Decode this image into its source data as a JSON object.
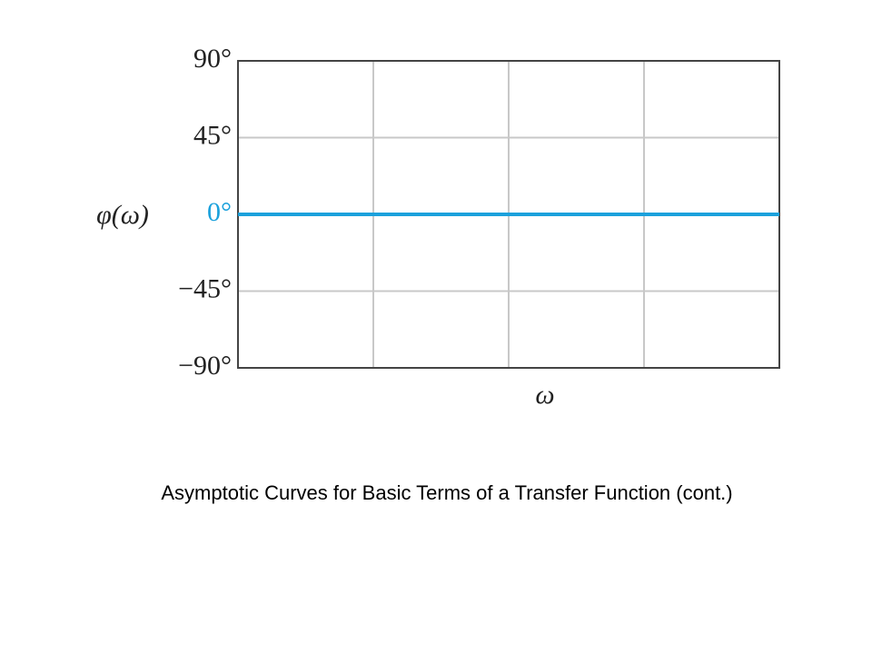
{
  "chart_data": {
    "type": "line",
    "ylabel": "φ(ω)",
    "xlabel": "ω",
    "x": [
      0,
      4
    ],
    "xlim": [
      0,
      4
    ],
    "series": [
      {
        "name": "φ(ω)",
        "color": "#1ba1dc",
        "values": [
          0,
          0
        ]
      }
    ],
    "ylim": [
      -90,
      90
    ],
    "yticks": [
      {
        "value": 90,
        "label": "90°"
      },
      {
        "value": 45,
        "label": "45°"
      },
      {
        "value": 0,
        "label": "0°"
      },
      {
        "value": -45,
        "label": "−45°"
      },
      {
        "value": -90,
        "label": "−90°"
      }
    ],
    "grid": true,
    "caption": "Asymptotic Curves for Basic Terms of a Transfer Function (cont.)"
  }
}
